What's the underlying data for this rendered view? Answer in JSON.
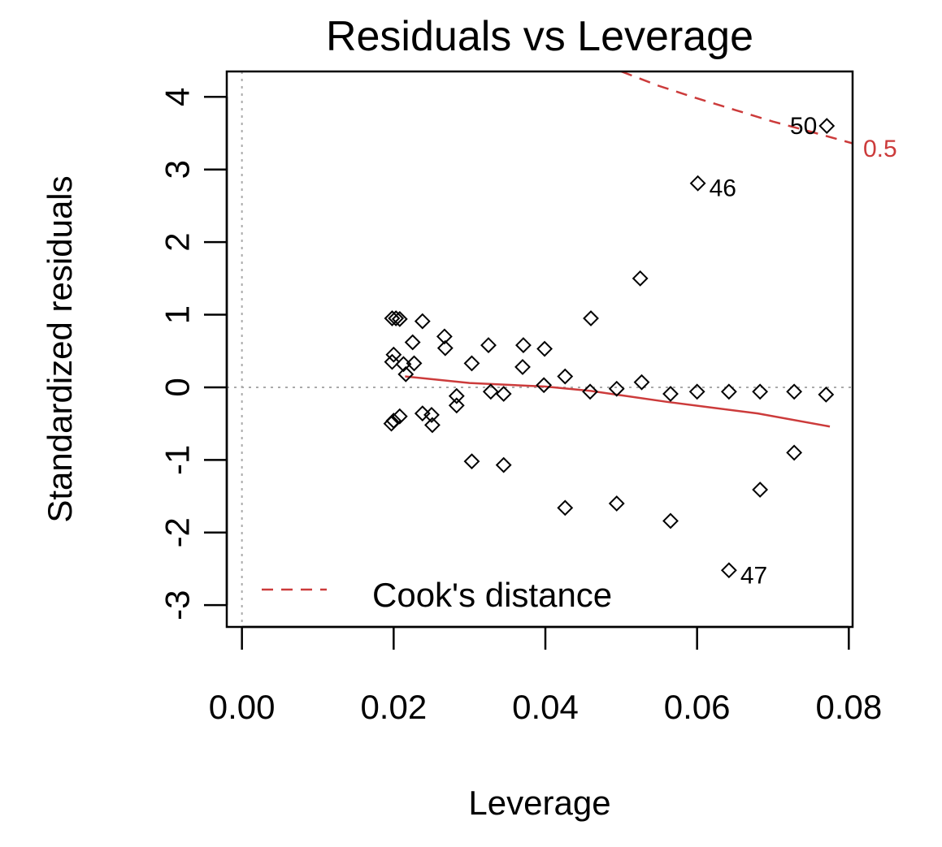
{
  "colors": {
    "points": "#000000",
    "smoother": "#cc3b3b",
    "cooks": "#cc3b3b",
    "reference_lines": "#aaaaaa",
    "frame": "#000000"
  },
  "chart_data": {
    "type": "scatter",
    "title": "Residuals vs Leverage",
    "xlabel": "Leverage",
    "ylabel": "Standardized residuals",
    "xlim": [
      -0.002,
      0.0805
    ],
    "ylim": [
      -3.3,
      4.35
    ],
    "xticks": [
      0.0,
      0.02,
      0.04,
      0.06,
      0.08
    ],
    "xtick_labels": [
      "0.00",
      "0.02",
      "0.04",
      "0.06",
      "0.08"
    ],
    "yticks": [
      -3,
      -2,
      -1,
      0,
      1,
      2,
      3,
      4
    ],
    "ytick_labels": [
      "-3",
      "-2",
      "-1",
      "0",
      "1",
      "2",
      "3",
      "4"
    ],
    "grid": false,
    "reference_lines": {
      "x": 0,
      "y": 0
    },
    "points": [
      {
        "x": 0.0198,
        "y": 0.95
      },
      {
        "x": 0.0203,
        "y": 0.95
      },
      {
        "x": 0.0208,
        "y": 0.94
      },
      {
        "x": 0.0238,
        "y": 0.91
      },
      {
        "x": 0.0225,
        "y": 0.62
      },
      {
        "x": 0.0267,
        "y": 0.7
      },
      {
        "x": 0.0268,
        "y": 0.54
      },
      {
        "x": 0.0325,
        "y": 0.58
      },
      {
        "x": 0.0371,
        "y": 0.58
      },
      {
        "x": 0.0399,
        "y": 0.53
      },
      {
        "x": 0.02,
        "y": 0.45
      },
      {
        "x": 0.0198,
        "y": 0.35
      },
      {
        "x": 0.0213,
        "y": 0.32
      },
      {
        "x": 0.0227,
        "y": 0.33
      },
      {
        "x": 0.0216,
        "y": 0.18
      },
      {
        "x": 0.0303,
        "y": 0.33
      },
      {
        "x": 0.037,
        "y": 0.28
      },
      {
        "x": 0.0426,
        "y": 0.15
      },
      {
        "x": 0.0398,
        "y": 0.03
      },
      {
        "x": 0.0527,
        "y": 0.07
      },
      {
        "x": 0.046,
        "y": 0.95
      },
      {
        "x": 0.0525,
        "y": 1.5
      },
      {
        "x": 0.0494,
        "y": -0.02
      },
      {
        "x": 0.0459,
        "y": -0.06
      },
      {
        "x": 0.0328,
        "y": -0.06
      },
      {
        "x": 0.0345,
        "y": -0.09
      },
      {
        "x": 0.0283,
        "y": -0.12
      },
      {
        "x": 0.0283,
        "y": -0.25
      },
      {
        "x": 0.0565,
        "y": -0.09
      },
      {
        "x": 0.06,
        "y": -0.06
      },
      {
        "x": 0.0642,
        "y": -0.06
      },
      {
        "x": 0.0683,
        "y": -0.06
      },
      {
        "x": 0.0728,
        "y": -0.06
      },
      {
        "x": 0.077,
        "y": -0.1
      },
      {
        "x": 0.02,
        "y": -0.46
      },
      {
        "x": 0.0197,
        "y": -0.5
      },
      {
        "x": 0.0208,
        "y": -0.4
      },
      {
        "x": 0.0238,
        "y": -0.36
      },
      {
        "x": 0.025,
        "y": -0.38
      },
      {
        "x": 0.0251,
        "y": -0.52
      },
      {
        "x": 0.0303,
        "y": -1.02
      },
      {
        "x": 0.0345,
        "y": -1.07
      },
      {
        "x": 0.0426,
        "y": -1.66
      },
      {
        "x": 0.0494,
        "y": -1.6
      },
      {
        "x": 0.0565,
        "y": -1.84
      },
      {
        "x": 0.0683,
        "y": -1.41
      },
      {
        "x": 0.0728,
        "y": -0.9
      },
      {
        "x": 0.0601,
        "y": 2.81
      },
      {
        "x": 0.0642,
        "y": -2.52
      },
      {
        "x": 0.0771,
        "y": 3.6
      }
    ],
    "point_labels": [
      {
        "text": "50",
        "x": 0.0771,
        "y": 3.6,
        "side": "left"
      },
      {
        "text": "46",
        "x": 0.0601,
        "y": 2.81,
        "side": "right"
      },
      {
        "text": "47",
        "x": 0.0642,
        "y": -2.52,
        "side": "right"
      }
    ],
    "smoother": [
      {
        "x": 0.0215,
        "y": 0.15
      },
      {
        "x": 0.03,
        "y": 0.06
      },
      {
        "x": 0.04,
        "y": 0.01
      },
      {
        "x": 0.046,
        "y": -0.05
      },
      {
        "x": 0.05,
        "y": -0.11
      },
      {
        "x": 0.056,
        "y": -0.2
      },
      {
        "x": 0.062,
        "y": -0.28
      },
      {
        "x": 0.068,
        "y": -0.36
      },
      {
        "x": 0.0775,
        "y": -0.54
      }
    ],
    "cooks_distance": {
      "label": "0.5",
      "curve": [
        {
          "x": 0.05,
          "y": 4.35
        },
        {
          "x": 0.055,
          "y": 4.15
        },
        {
          "x": 0.06,
          "y": 3.98
        },
        {
          "x": 0.065,
          "y": 3.82
        },
        {
          "x": 0.07,
          "y": 3.66
        },
        {
          "x": 0.075,
          "y": 3.52
        },
        {
          "x": 0.0805,
          "y": 3.36
        }
      ]
    },
    "legend": {
      "label": "Cook's distance",
      "position": "bottom-left"
    }
  }
}
